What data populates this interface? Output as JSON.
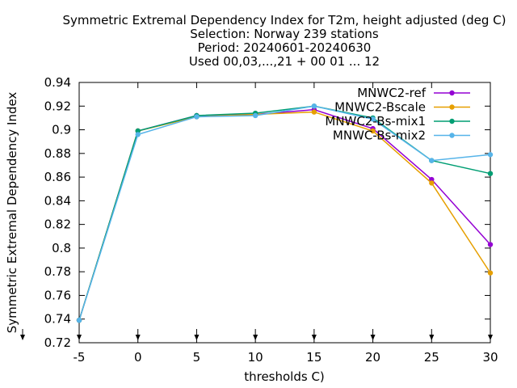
{
  "chart_data": {
    "type": "line",
    "title_lines": [
      "Symmetric Extremal Dependency Index  for T2m, height adjusted (deg C)",
      "Selection: Norway    239 stations",
      "Period: 20240601-20240630",
      "Used 00,03,...,21 + 00 01 ... 12"
    ],
    "xlabel": "thresholds C)",
    "ylabel": "Symmetric Extremal Dependency Index",
    "x": [
      -5,
      0,
      5,
      10,
      15,
      20,
      25,
      30
    ],
    "xticks": [
      "-5",
      "0",
      "5",
      "10",
      "15",
      "20",
      "25",
      "30"
    ],
    "yticks": [
      "0.72",
      "0.74",
      "0.76",
      "0.78",
      "0.8",
      "0.82",
      "0.84",
      "0.86",
      "0.88",
      "0.9",
      "0.92",
      "0.94"
    ],
    "xlim": [
      -5,
      30
    ],
    "ylim": [
      0.72,
      0.94
    ],
    "grid": false,
    "legend_position": "top-right",
    "series": [
      {
        "name": "MNWC2-ref",
        "color": "#9400d3",
        "values": [
          0.739,
          0.899,
          0.912,
          0.913,
          0.917,
          0.901,
          0.858,
          0.803
        ]
      },
      {
        "name": "MNWC2-Bscale",
        "color": "#e69f00",
        "values": [
          0.739,
          0.899,
          0.911,
          0.913,
          0.915,
          0.899,
          0.855,
          0.779
        ]
      },
      {
        "name": "MNWC2-Bs-mix1",
        "color": "#009e73",
        "values": [
          0.739,
          0.899,
          0.912,
          0.914,
          0.92,
          0.91,
          0.874,
          0.863
        ]
      },
      {
        "name": "MNWC-Bs-mix2",
        "color": "#56b4e9",
        "values": [
          0.739,
          0.896,
          0.911,
          0.912,
          0.92,
          0.909,
          0.874,
          0.879
        ]
      }
    ]
  }
}
